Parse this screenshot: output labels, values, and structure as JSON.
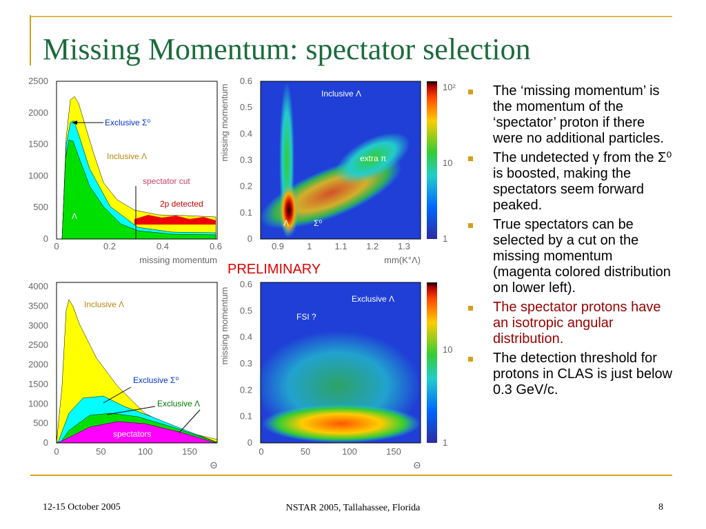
{
  "header": {
    "title": "Missing Momentum: spectator selection"
  },
  "plots": [
    {
      "yticks": [
        "0",
        "500",
        "1000",
        "1500",
        "2000",
        "2500"
      ],
      "xticks": [
        "0",
        "0.2",
        "0.4",
        "0.6"
      ],
      "xlabel": "missing momentum",
      "annotations": [
        "Exclusive Σ⁰",
        "Inclusive Λ",
        "spectator cut",
        "2p detected",
        "Λ"
      ]
    },
    {
      "yticks": [
        "0",
        "0.1",
        "0.2",
        "0.3",
        "0.4",
        "0.5",
        "0.6"
      ],
      "xticks": [
        "0.9",
        "1",
        "1.1",
        "1.2",
        "1.3"
      ],
      "xlabel": "mm(K°Λ)",
      "ylabel": "missing momentum",
      "colorbar": [
        "10²",
        "10",
        "1"
      ],
      "annotations": [
        "Inclusive Λ",
        "extra π",
        "Λ",
        "Σ⁰"
      ]
    },
    {
      "yticks": [
        "0",
        "500",
        "1000",
        "1500",
        "2000",
        "2500",
        "3000",
        "3500",
        "4000"
      ],
      "xticks": [
        "0",
        "50",
        "100",
        "150"
      ],
      "xlabel": "Θ",
      "annotations": [
        "Inclusive Λ",
        "Exclusive Σ⁰",
        "Exclusive Λ",
        "spectators"
      ]
    },
    {
      "yticks": [
        "0",
        "0.1",
        "0.2",
        "0.3",
        "0.4",
        "0.5",
        "0.6"
      ],
      "xticks": [
        "0",
        "50",
        "100",
        "150"
      ],
      "xlabel": "Θ",
      "ylabel": "missing momentum",
      "colorbar": [
        "10",
        "1"
      ],
      "annotations": [
        "Exclusive Λ",
        "FSI ?"
      ]
    }
  ],
  "preliminary": "PRELIMINARY",
  "bullets": [
    "The ‘missing momentum’ is the momentum of the ‘spectator’ proton if there were no additional particles.",
    "The undetected γ from the Σ⁰ is boosted, making the spectators seem forward peaked.",
    "True spectators can be selected by a cut on the missing momentum (magenta colored distribution on lower left).",
    "The spectator protons have an isotropic angular distribution.",
    "The detection threshold for protons in CLAS is just below 0.3 GeV/c."
  ],
  "footer": {
    "date": "12-15 October 2005",
    "event": "NSTAR 2005, Tallahassee, Florida",
    "page": "8"
  }
}
